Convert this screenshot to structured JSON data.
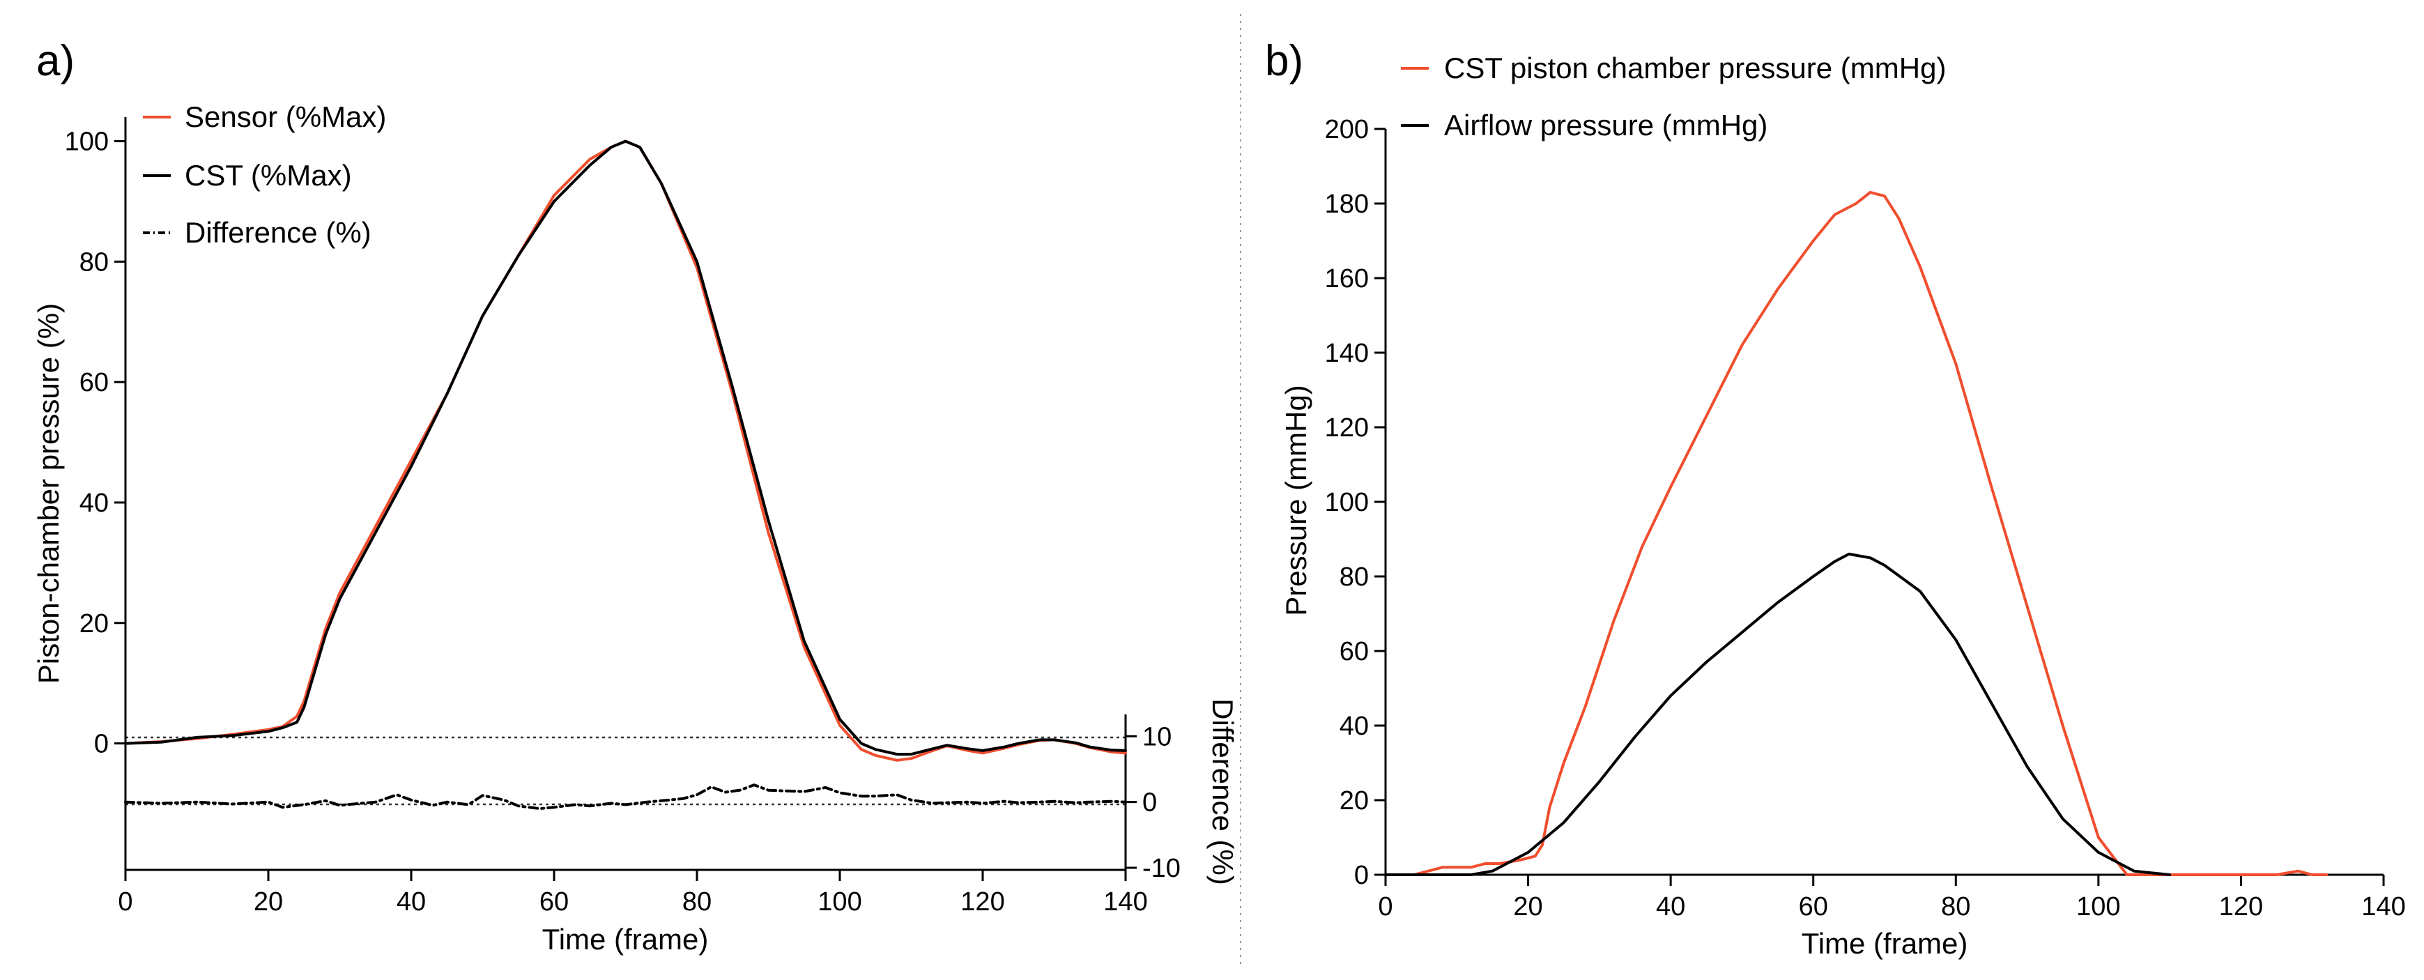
{
  "chart_data": [
    {
      "panel_label": "a)",
      "type": "line",
      "title": "",
      "xlabel": "Time (frame)",
      "ylabel": "Piston-chamber pressure (%)",
      "y2label": "Difference (%)",
      "xlim": [
        0,
        140
      ],
      "ylim": [
        -21,
        104
      ],
      "y2lim": [
        -10,
        13
      ],
      "x_ticks": [
        "0",
        "20",
        "40",
        "60",
        "80",
        "100",
        "120",
        "140"
      ],
      "y_ticks": [
        "0",
        "20",
        "40",
        "60",
        "80",
        "100"
      ],
      "y2_ticks": [
        "10",
        "0",
        "-10"
      ],
      "grid": false,
      "reference_lines_pct": [
        0,
        -11
      ],
      "legend": [
        {
          "label": "Sensor (%Max)",
          "color": "#f04e2e",
          "style": "solid"
        },
        {
          "label": "CST (%Max)",
          "color": "#000000",
          "style": "solid"
        },
        {
          "label": "Difference (%)",
          "color": "#000000",
          "style": "dashdot"
        }
      ],
      "series": [
        {
          "name": "Sensor (%Max)",
          "color": "#f04e2e",
          "style": "solid",
          "x": [
            0,
            5,
            10,
            15,
            20,
            22,
            24,
            25,
            26,
            28,
            30,
            35,
            40,
            45,
            50,
            55,
            60,
            65,
            68,
            70,
            72,
            75,
            80,
            85,
            90,
            95,
            100,
            103,
            105,
            108,
            110,
            113,
            115,
            118,
            120,
            123,
            125,
            128,
            130,
            133,
            135,
            138,
            140
          ],
          "values": [
            0,
            0.3,
            0.8,
            1.5,
            2.3,
            2.8,
            4.5,
            7,
            11,
            19,
            25,
            36,
            47,
            58,
            71,
            81,
            91,
            97,
            99,
            100,
            99,
            93,
            79,
            58,
            35,
            16,
            3,
            -1,
            -2,
            -2.8,
            -2.5,
            -1.2,
            -0.4,
            -1.2,
            -1.6,
            -0.8,
            -0.2,
            0.5,
            0.6,
            0,
            -0.7,
            -1.4,
            -1.6
          ]
        },
        {
          "name": "CST (%Max)",
          "color": "#000000",
          "style": "solid",
          "x": [
            0,
            5,
            10,
            15,
            20,
            22,
            24,
            25,
            26,
            28,
            30,
            35,
            40,
            45,
            50,
            55,
            60,
            65,
            68,
            70,
            72,
            75,
            80,
            85,
            90,
            95,
            100,
            103,
            105,
            108,
            110,
            113,
            115,
            118,
            120,
            123,
            125,
            128,
            130,
            133,
            135,
            138,
            140
          ],
          "values": [
            0,
            0.2,
            1,
            1.3,
            2,
            2.6,
            3.5,
            6,
            10,
            18,
            24,
            35,
            46,
            58,
            71,
            81,
            90,
            96,
            99,
            100,
            99,
            93,
            80,
            59,
            37,
            17,
            4,
            0,
            -1,
            -1.8,
            -1.8,
            -0.9,
            -0.3,
            -0.9,
            -1.2,
            -0.6,
            0,
            0.6,
            0.6,
            0.1,
            -0.6,
            -1.1,
            -1.2
          ]
        },
        {
          "name": "Difference (%)",
          "color": "#000000",
          "style": "dashdot",
          "axis": "right",
          "x": [
            0,
            5,
            10,
            15,
            20,
            22,
            25,
            28,
            30,
            33,
            35,
            38,
            40,
            43,
            45,
            48,
            50,
            53,
            55,
            58,
            60,
            63,
            65,
            68,
            70,
            73,
            75,
            78,
            80,
            82,
            84,
            86,
            88,
            90,
            92,
            95,
            98,
            100,
            103,
            105,
            108,
            110,
            113,
            115,
            118,
            120,
            123,
            125,
            128,
            130,
            133,
            135,
            138,
            140
          ],
          "values": [
            0,
            -0.2,
            0,
            -0.3,
            0,
            -0.8,
            -0.4,
            0.2,
            -0.5,
            -0.2,
            0,
            1.1,
            0.3,
            -0.5,
            0,
            -0.4,
            1,
            0.3,
            -0.6,
            -1,
            -0.8,
            -0.4,
            -0.6,
            -0.2,
            -0.4,
            0,
            0.2,
            0.5,
            1.1,
            2.3,
            1.5,
            1.8,
            2.6,
            1.8,
            1.7,
            1.6,
            2.2,
            1.4,
            0.9,
            0.9,
            1.1,
            0.3,
            -0.2,
            -0.1,
            0,
            -0.2,
            0.1,
            -0.1,
            0,
            0.1,
            -0.1,
            0,
            0.1,
            0
          ]
        }
      ]
    },
    {
      "panel_label": "b)",
      "type": "line",
      "title": "",
      "xlabel": "Time (frame)",
      "ylabel": "Pressure (mmHg)",
      "xlim": [
        0,
        140
      ],
      "ylim": [
        0,
        200
      ],
      "x_ticks": [
        "0",
        "20",
        "40",
        "60",
        "80",
        "100",
        "120",
        "140"
      ],
      "y_ticks": [
        "0",
        "20",
        "40",
        "60",
        "80",
        "100",
        "120",
        "140",
        "160",
        "180",
        "200"
      ],
      "grid": false,
      "legend": [
        {
          "label": "CST piston chamber pressure (mmHg)",
          "color": "#f04e2e",
          "style": "solid"
        },
        {
          "label": "Airflow pressure (mmHg)",
          "color": "#000000",
          "style": "solid"
        }
      ],
      "series": [
        {
          "name": "CST piston chamber pressure (mmHg)",
          "color": "#f04e2e",
          "style": "solid",
          "x": [
            0,
            4,
            6,
            8,
            12,
            14,
            16,
            19,
            21,
            22,
            23,
            25,
            28,
            32,
            36,
            40,
            45,
            50,
            55,
            60,
            63,
            66,
            68,
            70,
            72,
            75,
            80,
            85,
            90,
            95,
            100,
            102,
            104,
            120,
            125,
            128,
            130,
            132
          ],
          "values": [
            0,
            0,
            1,
            2,
            2,
            3,
            3,
            4,
            5,
            8,
            18,
            30,
            45,
            68,
            88,
            104,
            123,
            142,
            157,
            170,
            177,
            180,
            183,
            182,
            176,
            163,
            137,
            104,
            72,
            40,
            10,
            5,
            0,
            0,
            0,
            1,
            0,
            0
          ]
        },
        {
          "name": "Airflow pressure (mmHg)",
          "color": "#000000",
          "style": "solid",
          "x": [
            0,
            12,
            15,
            20,
            25,
            30,
            35,
            40,
            45,
            50,
            55,
            60,
            63,
            65,
            68,
            70,
            75,
            80,
            85,
            90,
            95,
            100,
            105,
            110
          ],
          "values": [
            0,
            0,
            1,
            6,
            14,
            25,
            37,
            48,
            57,
            65,
            73,
            80,
            84,
            86,
            85,
            83,
            76,
            63,
            46,
            29,
            15,
            6,
            1,
            0
          ]
        }
      ]
    }
  ]
}
